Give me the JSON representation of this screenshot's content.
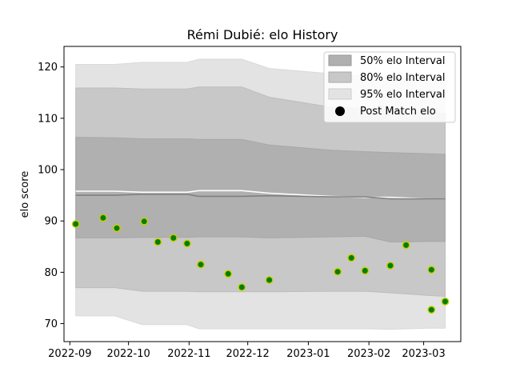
{
  "chart_data": {
    "type": "area",
    "title": "Rémi Dubié: elo History",
    "xlabel": "",
    "ylabel": "elo score",
    "xlim": [
      "2022-08-29",
      "2023-03-20"
    ],
    "ylim": [
      66.5,
      124
    ],
    "x_ticks": [
      "2022-09",
      "2022-10",
      "2022-11",
      "2022-12",
      "2023-01",
      "2023-02",
      "2023-03"
    ],
    "y_ticks": [
      70,
      80,
      90,
      100,
      110,
      120
    ],
    "grid": false,
    "legend_position": "top-right",
    "legend": [
      "50% elo Interval",
      "80% elo Interval",
      "95% elo Interval",
      "Post Match elo"
    ],
    "colors": {
      "band50": "#b0b0b0",
      "band80": "#c8c8c8",
      "band95": "#e3e3e3",
      "mean_line": "#808080",
      "white_line": "#ffffff",
      "point_fill": "#008000",
      "point_edge": "#cccc00",
      "legend_point": "#000000"
    },
    "band_dates": [
      "2022-09-04",
      "2022-09-24",
      "2022-10-08",
      "2022-10-31",
      "2022-11-06",
      "2022-11-28",
      "2022-12-12",
      "2023-01-12",
      "2023-01-30",
      "2023-02-12",
      "2023-03-03",
      "2023-03-12"
    ],
    "mean": [
      95.0,
      95.0,
      95.2,
      95.2,
      94.8,
      94.8,
      94.9,
      94.7,
      94.7,
      94.3,
      94.3,
      94.3
    ],
    "white_line": [
      95.8,
      95.8,
      95.6,
      95.6,
      95.9,
      95.9,
      95.4,
      94.8,
      94.6,
      94.6,
      94.3,
      94.3
    ],
    "band50": {
      "upper": [
        106.3,
        106.2,
        106.0,
        106.0,
        105.9,
        105.9,
        104.8,
        103.8,
        103.5,
        103.3,
        103.1,
        103.0
      ],
      "lower": [
        86.7,
        86.7,
        86.8,
        86.8,
        86.9,
        86.9,
        86.7,
        86.9,
        87.0,
        85.9,
        86.0,
        86.0
      ]
    },
    "band80": {
      "upper": [
        115.9,
        115.9,
        115.7,
        115.7,
        116.1,
        116.1,
        114.1,
        112.2,
        111.9,
        111.5,
        111.1,
        110.9
      ],
      "lower": [
        77.0,
        77.0,
        76.3,
        76.3,
        76.2,
        76.2,
        76.2,
        76.3,
        76.3,
        76.0,
        75.5,
        75.3
      ]
    },
    "band95": {
      "upper": [
        120.5,
        120.5,
        120.9,
        120.9,
        121.5,
        121.5,
        119.7,
        118.7,
        118.2,
        117.9,
        117.6,
        117.5
      ],
      "lower": [
        71.5,
        71.5,
        69.8,
        69.8,
        69.0,
        69.0,
        69.0,
        69.0,
        69.0,
        68.9,
        69.1,
        69.1
      ]
    },
    "points": [
      {
        "x": "2022-09-04",
        "y": 89.4
      },
      {
        "x": "2022-09-18",
        "y": 90.6
      },
      {
        "x": "2022-09-25",
        "y": 88.6
      },
      {
        "x": "2022-10-09",
        "y": 89.9
      },
      {
        "x": "2022-10-16",
        "y": 85.9
      },
      {
        "x": "2022-10-24",
        "y": 86.7
      },
      {
        "x": "2022-10-31",
        "y": 85.6
      },
      {
        "x": "2022-11-07",
        "y": 81.5
      },
      {
        "x": "2022-11-21",
        "y": 79.7
      },
      {
        "x": "2022-11-28",
        "y": 77.1
      },
      {
        "x": "2022-12-12",
        "y": 78.5
      },
      {
        "x": "2023-01-16",
        "y": 80.1
      },
      {
        "x": "2023-01-23",
        "y": 82.8
      },
      {
        "x": "2023-01-30",
        "y": 80.3
      },
      {
        "x": "2023-02-12",
        "y": 81.3
      },
      {
        "x": "2023-02-20",
        "y": 85.3
      },
      {
        "x": "2023-03-05",
        "y": 80.5
      },
      {
        "x": "2023-03-05",
        "y": 72.7
      },
      {
        "x": "2023-03-12",
        "y": 74.3
      }
    ]
  }
}
